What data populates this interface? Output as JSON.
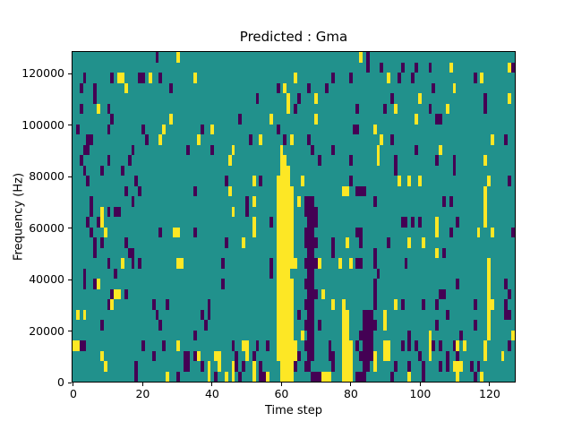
{
  "chart_data": {
    "type": "heatmap",
    "title": "Predicted : Gma",
    "xlabel": "Time step",
    "ylabel": "Frequency (Hz)",
    "grid": {
      "n_cols": 128,
      "n_rows": 32
    },
    "x_axis": {
      "ticks": [
        0,
        20,
        40,
        60,
        80,
        100,
        120
      ],
      "max": 128
    },
    "y_axis": {
      "ticks": [
        0,
        20000,
        40000,
        60000,
        80000,
        100000,
        120000
      ],
      "max": 128750
    },
    "legend": "none",
    "colormap": {
      "name": "viridis-3-level",
      "mid_teal": "#21918c",
      "high_yellow": "#fde725",
      "low_purple": "#440154",
      "axis_color": "#000000",
      "figure_background": "#ffffff"
    },
    "cells": {
      "yellow": [
        "13,2",
        "14,2",
        "22,2",
        "15,3",
        "7,5",
        "28,6",
        "26,7",
        "25,8",
        "8,15",
        "8,16",
        "9,17",
        "14,20",
        "7,22",
        "12-13,23",
        "11,24",
        "1,25",
        "3,25",
        "0-1,28",
        "8,29",
        "9,30",
        "27,31",
        "30,0",
        "35,2",
        "40,7",
        "36,8",
        "54,8",
        "46,9",
        "45,10",
        "52,12",
        "45,13",
        "52,14",
        "46,15",
        "52,16",
        "29-30,17",
        "52,17",
        "49,18",
        "30-31,20",
        "30,28",
        "49-50,28",
        "36,29",
        "41-42,29",
        "50,29",
        "39,30",
        "42,30",
        "46,30",
        "52,30",
        "39,31",
        "44,31",
        "46,31",
        "52,31",
        "56,31",
        "64,2",
        "61,3",
        "62,4",
        "70,4",
        "62,5",
        "57,6",
        "70,6",
        "63,8",
        "60,9",
        "66,12",
        "65,14",
        "64,20",
        "71,20",
        "72,23",
        "75,24",
        "66,27",
        "72-74,31",
        "60-61,10",
        "60-62,11",
        "59-62,12",
        "59-63,13-20",
        "59-62,21",
        "59-63,22-27",
        "59-64,28-29",
        "60-63,30-31",
        "83,0",
        "91,2",
        "100,4",
        "93,5",
        "99,6",
        "87,7",
        "89,8",
        "88,9-10",
        "94,12",
        "97,12",
        "100,12",
        "78-79,13",
        "105,16-17",
        "97,18",
        "101,18",
        "79,18",
        "77,20",
        "80,20",
        "93,24",
        "90,25-26",
        "78,24",
        "78-79,25-27",
        "78-80,28-31",
        "90-91,28-29",
        "87,29-30",
        "103,27-29",
        "97,31",
        "109,1",
        "126,1",
        "118,2",
        "110,3",
        "126,4",
        "108,5",
        "121,8",
        "106,9",
        "119,10",
        "120,12",
        "119,13-16",
        "117,17",
        "121,17",
        "105,19",
        "120,20-27",
        "121,24",
        "119,28-29",
        "124,29",
        "127,27",
        "111,28",
        "113,28",
        "110-112,30",
        "111,31",
        "118,31"
      ],
      "purple": [
        "24,0",
        "3,2",
        "11,2",
        "19-20,2",
        "25,2",
        "2,3",
        "6,3-4",
        "28,3",
        "2,5",
        "10,5",
        "11,6",
        "1,7",
        "10,7",
        "20,7",
        "4-5,8",
        "21,8",
        "3-4,9",
        "17,9",
        "2,10",
        "10,10",
        "16,10",
        "3,11",
        "8,11",
        "14,11",
        "4,12",
        "18,12",
        "15,13",
        "19,13",
        "5,14",
        "17,14",
        "5,15",
        "10,15",
        "12-13,15",
        "4,16",
        "7,16",
        "5,17",
        "25,17",
        "6,18",
        "8,18",
        "15,18",
        "6,19",
        "16-17,19",
        "10,20",
        "17,20",
        "19,20",
        "3,21",
        "12,21",
        "3,22",
        "6,22",
        "11,23",
        "15,23",
        "10,24",
        "23,24",
        "27,24",
        "24,25",
        "8,26",
        "25,26",
        "2-3,28",
        "20,28",
        "26,28",
        "23,29",
        "18,30",
        "18,31",
        "30,31",
        "53,4",
        "48,6",
        "37,7",
        "51,8",
        "33,9",
        "40,9",
        "44,12",
        "54,12",
        "35,13",
        "50,14-15",
        "57,16",
        "35,17",
        "44,18",
        "43,20",
        "57,20-21",
        "43,22",
        "39,24",
        "37,25",
        "39,25",
        "38,26",
        "35,27",
        "46,28",
        "53,28",
        "56,28",
        "32-33,29-30",
        "35,29",
        "42,29",
        "47,29",
        "52,29",
        "37,30",
        "47,30",
        "49,30",
        "54,30",
        "41,31",
        "48,31",
        "54-55,31",
        "75,2",
        "59,3",
        "68,3",
        "73,3",
        "65,4",
        "64,5",
        "59,7",
        "61,8",
        "68,8",
        "69,9",
        "75,9",
        "71,10",
        "67-69,14",
        "67-70,15",
        "68-70,16",
        "67-69,17",
        "67-70,18",
        "68-69,19",
        "75,18-19",
        "67-70,20",
        "68-69,21",
        "67-69,22",
        "68-70,23",
        "67-69,24",
        "65,25",
        "68-69,25",
        "67-69,26",
        "71,26",
        "68-69,27",
        "67-69,28",
        "74,28",
        "65,29",
        "68-69,29",
        "74-75,29",
        "64,30",
        "67-68,30",
        "75,30",
        "69-71,31",
        "85,0-1",
        "89,1",
        "95,1",
        "99,1",
        "103,1",
        "80,2",
        "94,2",
        "98,2",
        "104,3",
        "92,4",
        "82,5",
        "90,5",
        "103,5",
        "81-82,7",
        "92,8",
        "99,9",
        "80,10",
        "93,10",
        "93,11",
        "80,12",
        "82-84,13",
        "87,14",
        "95-96,16",
        "98,16",
        "100,16",
        "82-83,17",
        "83,18",
        "91,18",
        "87,19",
        "82-83,20",
        "87,20",
        "96,20",
        "88,21",
        "87,22",
        "87,23",
        "101,24",
        "87,24",
        "95,24",
        "84-86,25",
        "84-87,26",
        "83-86,27",
        "82,28",
        "84-86,28",
        "95,28",
        "97,27-28",
        "99,28",
        "104,28",
        "83-86,29",
        "100,29",
        "84-85,30",
        "93,30",
        "97,30",
        "101,30",
        "92,31",
        "82-84,31",
        "101,31",
        "127,1",
        "116,2",
        "119,4-5",
        "105-106,6",
        "125,8",
        "105,10",
        "110,10-11",
        "126,12",
        "107,14",
        "109,14",
        "111,16",
        "109,17",
        "127,17",
        "107,19",
        "111,22",
        "125,22",
        "106-107,23",
        "126,23",
        "105,24",
        "116,24",
        "125,24-25",
        "108,25",
        "126,25",
        "105,26",
        "116,26",
        "112,27",
        "106,28",
        "110,28",
        "126,28",
        "108,29",
        "111,29",
        "106,30",
        "108,30",
        "115,30",
        "117,30",
        "116,31"
      ]
    }
  }
}
